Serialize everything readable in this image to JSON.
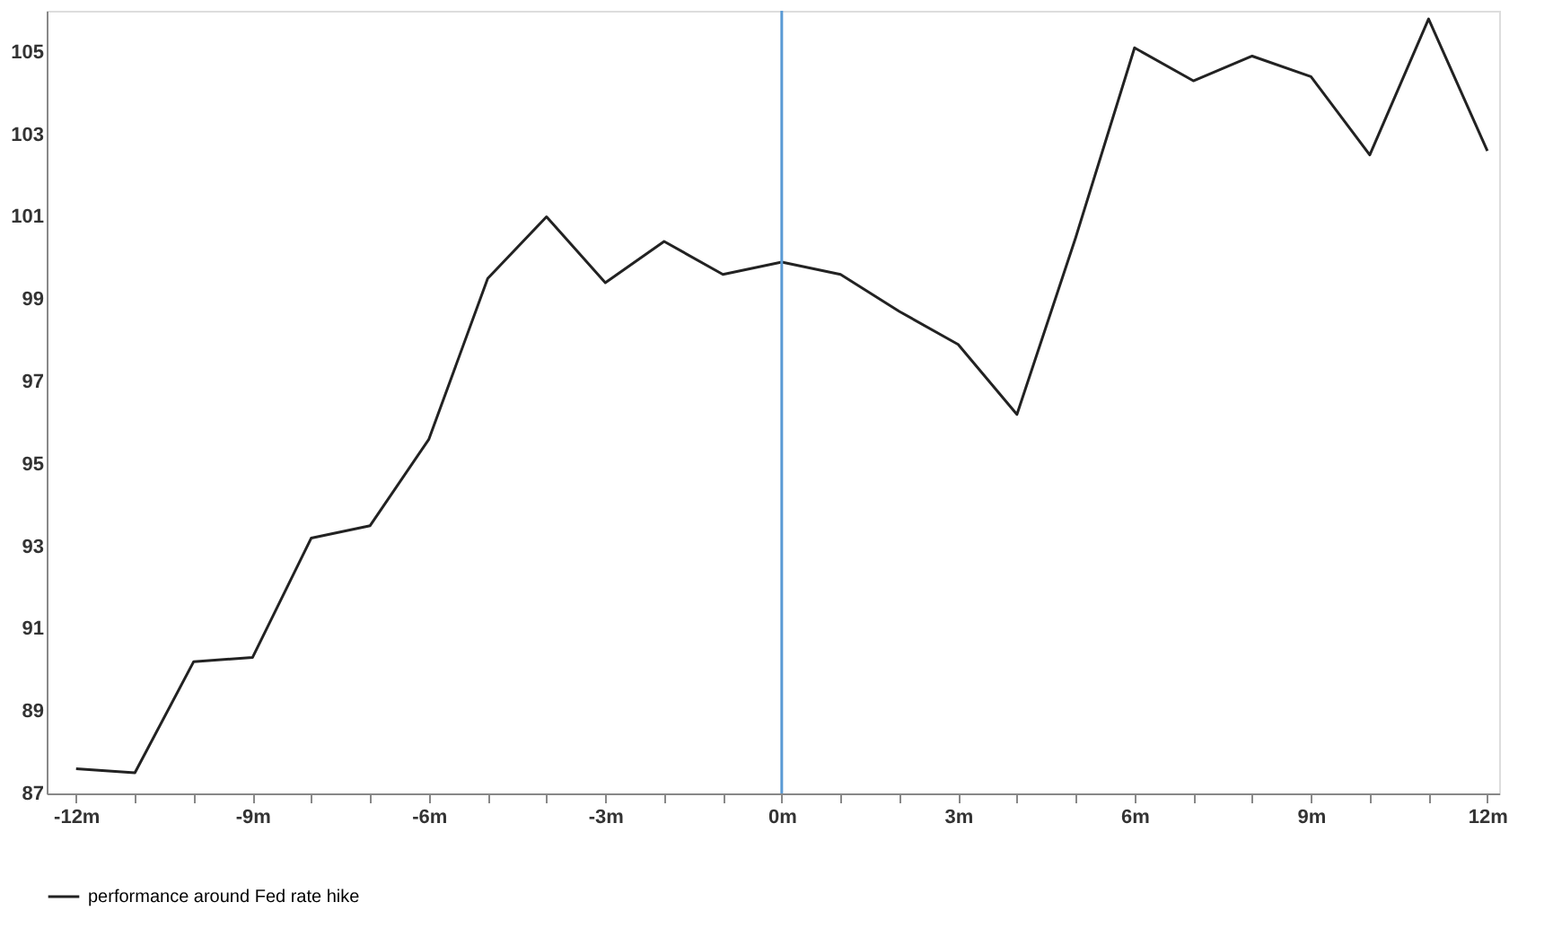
{
  "chart_data": {
    "type": "line",
    "x": [
      -12,
      -11,
      -10,
      -9,
      -8,
      -7,
      -6,
      -5,
      -4,
      -3,
      -2,
      -1,
      0,
      1,
      2,
      3,
      4,
      5,
      6,
      7,
      8,
      9,
      10,
      11,
      12
    ],
    "series": [
      {
        "name": "performance around Fed rate hike",
        "color": "#222222",
        "values": [
          87.6,
          87.5,
          90.2,
          90.3,
          93.2,
          93.5,
          95.6,
          99.5,
          101.0,
          99.4,
          100.4,
          99.6,
          99.9,
          99.6,
          98.7,
          97.9,
          96.2,
          100.5,
          105.1,
          104.3,
          104.9,
          104.4,
          102.5,
          105.8,
          102.6
        ]
      }
    ],
    "xlim": [
      -12.5,
      12.2
    ],
    "xticks": [
      {
        "value": -12,
        "label": "-12m"
      },
      {
        "value": -11,
        "label": null
      },
      {
        "value": -10,
        "label": null
      },
      {
        "value": -9,
        "label": "-9m"
      },
      {
        "value": -8,
        "label": null
      },
      {
        "value": -7,
        "label": null
      },
      {
        "value": -6,
        "label": "-6m"
      },
      {
        "value": -5,
        "label": null
      },
      {
        "value": -4,
        "label": null
      },
      {
        "value": -3,
        "label": "-3m"
      },
      {
        "value": -2,
        "label": null
      },
      {
        "value": -1,
        "label": null
      },
      {
        "value": 0,
        "label": "0m"
      },
      {
        "value": 1,
        "label": null
      },
      {
        "value": 2,
        "label": null
      },
      {
        "value": 3,
        "label": "3m"
      },
      {
        "value": 4,
        "label": null
      },
      {
        "value": 5,
        "label": null
      },
      {
        "value": 6,
        "label": "6m"
      },
      {
        "value": 7,
        "label": null
      },
      {
        "value": 8,
        "label": null
      },
      {
        "value": 9,
        "label": "9m"
      },
      {
        "value": 10,
        "label": null
      },
      {
        "value": 11,
        "label": null
      },
      {
        "value": 12,
        "label": "12m"
      }
    ],
    "ylim": [
      87,
      106
    ],
    "yticks": [
      87,
      89,
      91,
      93,
      95,
      97,
      99,
      101,
      103,
      105
    ],
    "ref_lines": [
      {
        "axis": "x",
        "value": 0,
        "color": "#5b9bd5"
      }
    ],
    "grid": false,
    "legend": "bottom",
    "marker": "none",
    "line_style": "solid"
  }
}
